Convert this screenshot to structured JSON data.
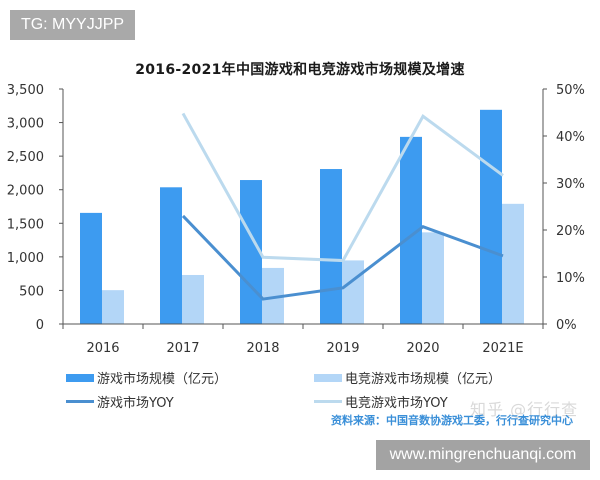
{
  "badges": {
    "top_left": "TG: MYYJJPP",
    "bottom_right": "www.mingrenchuanqi.com"
  },
  "watermark": "知乎 @行行查",
  "source": "资料来源：中国音数协游戏工委，行行查研究中心",
  "legend": [
    {
      "label": "游戏市场规模（亿元）",
      "type": "bar",
      "color": "#3d9bf0"
    },
    {
      "label": "电竞游戏市场规模（亿元）",
      "type": "bar",
      "color": "#b3d6f7"
    },
    {
      "label": "游戏市场YOY",
      "type": "line",
      "color": "#4a8fd0"
    },
    {
      "label": "电竞游戏市场YOY",
      "type": "line",
      "color": "#bcdaee"
    }
  ],
  "chart_data": {
    "type": "bar",
    "title": "2016-2021年中国游戏和电竞游戏市场规模及增速",
    "categories": [
      "2016",
      "2017",
      "2018",
      "2019",
      "2020",
      "2021E"
    ],
    "series": [
      {
        "name": "游戏市场规模（亿元）",
        "type": "bar",
        "axis": "left",
        "color": "#3d9bf0",
        "values": [
          1655,
          2036,
          2144,
          2308,
          2787,
          3190
        ]
      },
      {
        "name": "电竞游戏市场规模（亿元）",
        "type": "bar",
        "axis": "left",
        "color": "#b3d6f7",
        "values": [
          504,
          730,
          835,
          947,
          1365,
          1790
        ]
      },
      {
        "name": "游戏市场YOY",
        "type": "line",
        "axis": "right",
        "color": "#4a8fd0",
        "values": [
          null,
          23.0,
          5.3,
          7.7,
          20.7,
          14.5
        ]
      },
      {
        "name": "电竞游戏市场YOY",
        "type": "line",
        "axis": "right",
        "color": "#bcdaee",
        "values": [
          null,
          44.8,
          14.2,
          13.5,
          44.2,
          31.6
        ]
      }
    ],
    "left_axis": {
      "min": 0,
      "max": 3500,
      "ticks": [
        "0",
        "500",
        "1,000",
        "1,500",
        "2,000",
        "2,500",
        "3,000",
        "3,500"
      ]
    },
    "right_axis": {
      "min": 0,
      "max": 50,
      "ticks": [
        "0%",
        "10%",
        "20%",
        "30%",
        "40%",
        "50%"
      ]
    },
    "xlabel": "",
    "ylabel": "",
    "grid": false,
    "legend_position": "bottom"
  }
}
